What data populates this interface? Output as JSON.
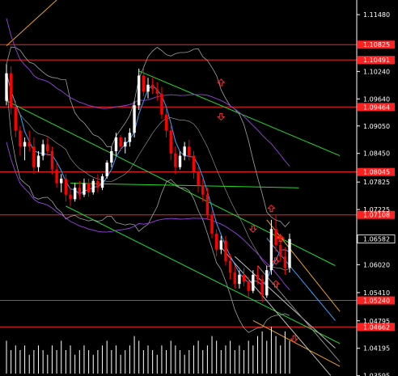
{
  "chart_data": {
    "type": "candlestick",
    "symbol_hidden": true,
    "y_axis": {
      "min": 1.0359,
      "max": 1.118,
      "ticks": [
        "1.11480",
        "1.10240",
        "1.09640",
        "1.09050",
        "1.08450",
        "1.07825",
        "1.07225",
        "1.06020",
        "1.05410",
        "1.04795",
        "1.04195",
        "1.03595"
      ]
    },
    "current_price": "1.06582",
    "horizontal_levels": [
      {
        "label": "1.10825",
        "value": 1.10825,
        "color": "#ff2020"
      },
      {
        "label": "1.10491",
        "value": 1.10491,
        "color": "#ff2020"
      },
      {
        "label": "1.09464",
        "value": 1.09464,
        "color": "#ff2020"
      },
      {
        "label": "1.08045",
        "value": 1.08045,
        "color": "#ff2020"
      },
      {
        "label": "1.07108",
        "value": 1.07108,
        "color": "#ff2020"
      },
      {
        "label": "1.05240",
        "value": 1.0524,
        "color": "#ff2020"
      },
      {
        "label": "1.04662",
        "value": 1.04662,
        "color": "#ff2020"
      }
    ],
    "candles": [
      [
        1.096,
        1.104,
        1.095,
        1.102
      ],
      [
        1.102,
        1.1035,
        1.093,
        1.0945
      ],
      [
        1.0945,
        1.096,
        1.088,
        1.0895
      ],
      [
        1.0895,
        1.0905,
        1.084,
        1.086
      ],
      [
        1.086,
        1.088,
        1.083,
        1.087
      ],
      [
        1.087,
        1.0895,
        1.085,
        1.086
      ],
      [
        1.086,
        1.088,
        1.08,
        1.0815
      ],
      [
        1.0815,
        1.085,
        1.0805,
        1.084
      ],
      [
        1.084,
        1.0875,
        1.083,
        1.0865
      ],
      [
        1.0865,
        1.088,
        1.084,
        1.085
      ],
      [
        1.085,
        1.086,
        1.08,
        1.081
      ],
      [
        1.081,
        1.0825,
        1.077,
        1.078
      ],
      [
        1.078,
        1.08,
        1.076,
        1.079
      ],
      [
        1.079,
        1.08,
        1.074,
        1.0755
      ],
      [
        1.0755,
        1.077,
        1.073,
        1.0745
      ],
      [
        1.0745,
        1.078,
        1.074,
        1.077
      ],
      [
        1.077,
        1.0785,
        1.0745,
        1.0755
      ],
      [
        1.0755,
        1.079,
        1.075,
        1.078
      ],
      [
        1.078,
        1.079,
        1.075,
        1.076
      ],
      [
        1.076,
        1.079,
        1.0755,
        1.0785
      ],
      [
        1.0785,
        1.08,
        1.076,
        1.077
      ],
      [
        1.077,
        1.08,
        1.0765,
        1.0795
      ],
      [
        1.0795,
        1.083,
        1.079,
        1.0825
      ],
      [
        1.0825,
        1.086,
        1.0815,
        1.085
      ],
      [
        1.085,
        1.089,
        1.084,
        1.088
      ],
      [
        1.088,
        1.0885,
        1.085,
        1.086
      ],
      [
        1.086,
        1.088,
        1.0845,
        1.087
      ],
      [
        1.087,
        1.09,
        1.086,
        1.089
      ],
      [
        1.089,
        1.096,
        1.088,
        1.095
      ],
      [
        1.095,
        1.103,
        1.094,
        1.1015
      ],
      [
        1.1015,
        1.103,
        1.097,
        1.098
      ],
      [
        1.098,
        1.101,
        1.0965,
        1.0995
      ],
      [
        1.0995,
        1.101,
        1.0975,
        1.0985
      ],
      [
        1.0985,
        1.1,
        1.096,
        1.0975
      ],
      [
        1.0975,
        1.099,
        1.092,
        1.093
      ],
      [
        1.093,
        1.0945,
        1.088,
        1.0895
      ],
      [
        1.0895,
        1.0905,
        1.083,
        1.0845
      ],
      [
        1.0845,
        1.086,
        1.08,
        1.0815
      ],
      [
        1.0815,
        1.085,
        1.081,
        1.084
      ],
      [
        1.084,
        1.087,
        1.083,
        1.086
      ],
      [
        1.086,
        1.0875,
        1.083,
        1.084
      ],
      [
        1.084,
        1.085,
        1.079,
        1.0805
      ],
      [
        1.0805,
        1.0815,
        1.076,
        1.0775
      ],
      [
        1.0775,
        1.079,
        1.074,
        1.0755
      ],
      [
        1.0755,
        1.077,
        1.07,
        1.071
      ],
      [
        1.071,
        1.072,
        1.066,
        1.067
      ],
      [
        1.067,
        1.068,
        1.062,
        1.0635
      ],
      [
        1.0635,
        1.0665,
        1.0625,
        1.0655
      ],
      [
        1.0655,
        1.0665,
        1.06,
        1.061
      ],
      [
        1.061,
        1.0625,
        1.057,
        1.0585
      ],
      [
        1.0585,
        1.06,
        1.055,
        1.056
      ],
      [
        1.056,
        1.059,
        1.055,
        1.058
      ],
      [
        1.058,
        1.0595,
        1.0555,
        1.0565
      ],
      [
        1.0565,
        1.0575,
        1.053,
        1.0545
      ],
      [
        1.0545,
        1.059,
        1.054,
        1.058
      ],
      [
        1.058,
        1.06,
        1.056,
        1.057
      ],
      [
        1.057,
        1.058,
        1.052,
        1.0535
      ],
      [
        1.0535,
        1.06,
        1.053,
        1.059
      ],
      [
        1.059,
        1.07,
        1.058,
        1.068
      ],
      [
        1.068,
        1.071,
        1.063,
        1.0645
      ],
      [
        1.0645,
        1.067,
        1.061,
        1.062
      ],
      [
        1.062,
        1.064,
        1.058,
        1.0595
      ],
      [
        1.0595,
        1.067,
        1.0585,
        1.0658
      ]
    ],
    "volumes": [
      0.7,
      0.5,
      0.6,
      0.5,
      0.6,
      0.4,
      0.5,
      0.6,
      0.5,
      0.4,
      0.6,
      0.5,
      0.7,
      0.5,
      0.6,
      0.4,
      0.5,
      0.6,
      0.5,
      0.4,
      0.5,
      0.6,
      0.7,
      0.5,
      0.6,
      0.4,
      0.5,
      0.6,
      0.8,
      0.7,
      0.5,
      0.6,
      0.5,
      0.4,
      0.6,
      0.5,
      0.7,
      0.6,
      0.5,
      0.4,
      0.5,
      0.6,
      0.7,
      0.5,
      0.6,
      0.8,
      0.7,
      0.5,
      0.6,
      0.7,
      0.5,
      0.6,
      0.5,
      0.7,
      0.6,
      0.8,
      0.9,
      0.7,
      1.0,
      0.8,
      0.6,
      0.9,
      0.7
    ],
    "colors": {
      "bull": "#ffffff",
      "bear": "#ff0000",
      "channel_green": "#22dd22",
      "channel_orange": "#e8a020",
      "envelope_purple": "#9a40e0",
      "band_gray": "#a0a0a0",
      "ma_blue": "#3aa0ff",
      "arrow_red": "#ff3030"
    }
  }
}
